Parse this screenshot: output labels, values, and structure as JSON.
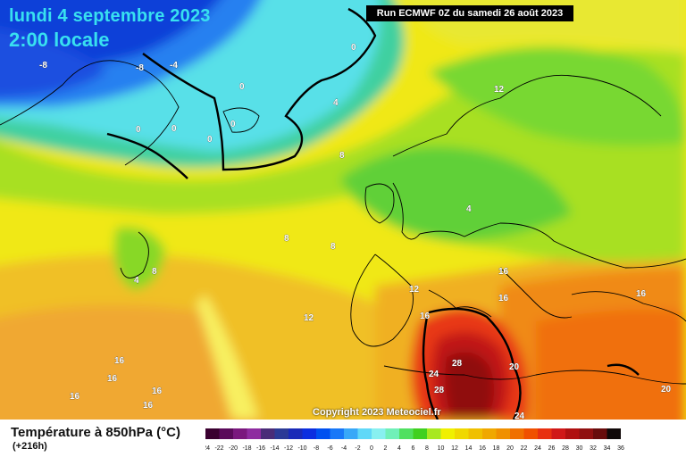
{
  "header": {
    "date": "lundi 4 septembre 2023",
    "time": "2:00 locale",
    "run": "Run ECMWF 0Z du samedi 26 août 2023"
  },
  "footer": {
    "copyright": "Copyright 2023 Meteociel.fr",
    "variable": "Température à 850hPa (°C)",
    "step": "(+216h)"
  },
  "legend": {
    "ticks": [
      "-24",
      "-22",
      "-20",
      "-18",
      "-16",
      "-14",
      "-12",
      "-10",
      "-8",
      "-6",
      "-4",
      "-2",
      "0",
      "2",
      "4",
      "6",
      "8",
      "10",
      "12",
      "14",
      "16",
      "18",
      "20",
      "22",
      "24",
      "26",
      "28",
      "30",
      "32",
      "34",
      "36"
    ],
    "colors": [
      "#3a0030",
      "#5a0a5a",
      "#7a187e",
      "#8e2ca0",
      "#4a2c78",
      "#2c3a96",
      "#1a2ab8",
      "#0c2ee0",
      "#0050f0",
      "#1878f8",
      "#38a8f8",
      "#60d8f8",
      "#88f0f0",
      "#70f0b8",
      "#50e060",
      "#40d020",
      "#a8e820",
      "#f0f000",
      "#f0d800",
      "#f0c000",
      "#f0a800",
      "#f09000",
      "#f07000",
      "#f05000",
      "#e83010",
      "#d01818",
      "#b01010",
      "#901010",
      "#680c0c",
      "#100808"
    ]
  },
  "map_labels": [
    {
      "text": "-8",
      "color": "#fff"
    },
    {
      "text": "-8",
      "color": "#fff"
    },
    {
      "text": "-4",
      "color": "#fff"
    },
    {
      "text": "0",
      "color": "#fff"
    },
    {
      "text": "0",
      "color": "#fff"
    },
    {
      "text": "0",
      "color": "#fff"
    },
    {
      "text": "0",
      "color": "#fff"
    },
    {
      "text": "0",
      "color": "#fff"
    },
    {
      "text": "0",
      "color": "#fff"
    },
    {
      "text": "4",
      "color": "#fff"
    },
    {
      "text": "8",
      "color": "#fff"
    },
    {
      "text": "12",
      "color": "#fff"
    },
    {
      "text": "8",
      "color": "#fff"
    },
    {
      "text": "8",
      "color": "#fff"
    },
    {
      "text": "4",
      "color": "#fff"
    },
    {
      "text": "4",
      "color": "#fff"
    },
    {
      "text": "8",
      "color": "#fff"
    },
    {
      "text": "12",
      "color": "#fff"
    },
    {
      "text": "16",
      "color": "#fff"
    },
    {
      "text": "16",
      "color": "#fff"
    },
    {
      "text": "16",
      "color": "#fff"
    },
    {
      "text": "16",
      "color": "#fff"
    },
    {
      "text": "12",
      "color": "#fff"
    },
    {
      "text": "16",
      "color": "#fff"
    },
    {
      "text": "16",
      "color": "#fff"
    },
    {
      "text": "16",
      "color": "#fff"
    },
    {
      "text": "16",
      "color": "#fff"
    },
    {
      "text": "16",
      "color": "#fff"
    },
    {
      "text": "24",
      "color": "#fff"
    },
    {
      "text": "28",
      "color": "#fff"
    },
    {
      "text": "28",
      "color": "#fff"
    },
    {
      "text": "20",
      "color": "#fff"
    },
    {
      "text": "24",
      "color": "#fff"
    },
    {
      "text": "20",
      "color": "#fff"
    }
  ]
}
